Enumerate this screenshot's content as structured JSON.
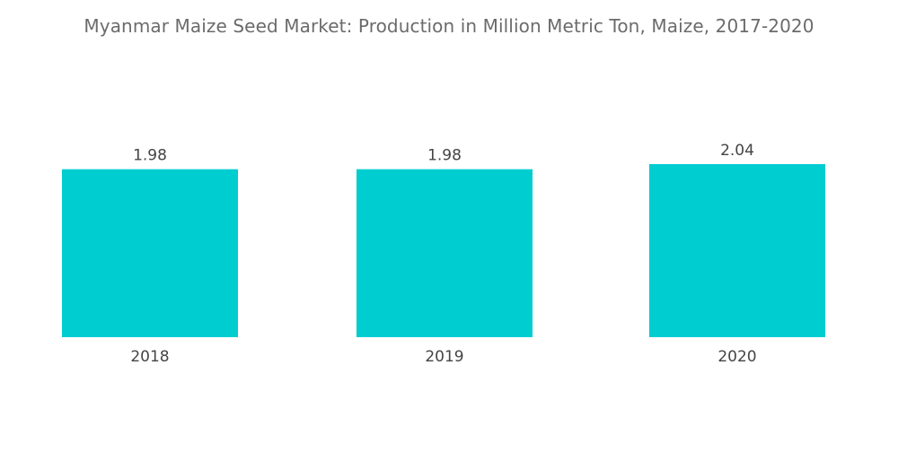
{
  "chart_data": {
    "type": "bar",
    "title": "Myanmar Maize Seed Market: Production in Million Metric Ton, Maize, 2017-2020",
    "categories": [
      "2018",
      "2019",
      "2020"
    ],
    "values": [
      1.98,
      1.98,
      2.04
    ],
    "value_labels": [
      "1.98",
      "1.98",
      "2.04"
    ],
    "xlabel": "",
    "ylabel": "",
    "ylim": [
      0,
      2.04
    ],
    "grid": false,
    "legend": "none",
    "bar_color": "#00cdd0"
  }
}
